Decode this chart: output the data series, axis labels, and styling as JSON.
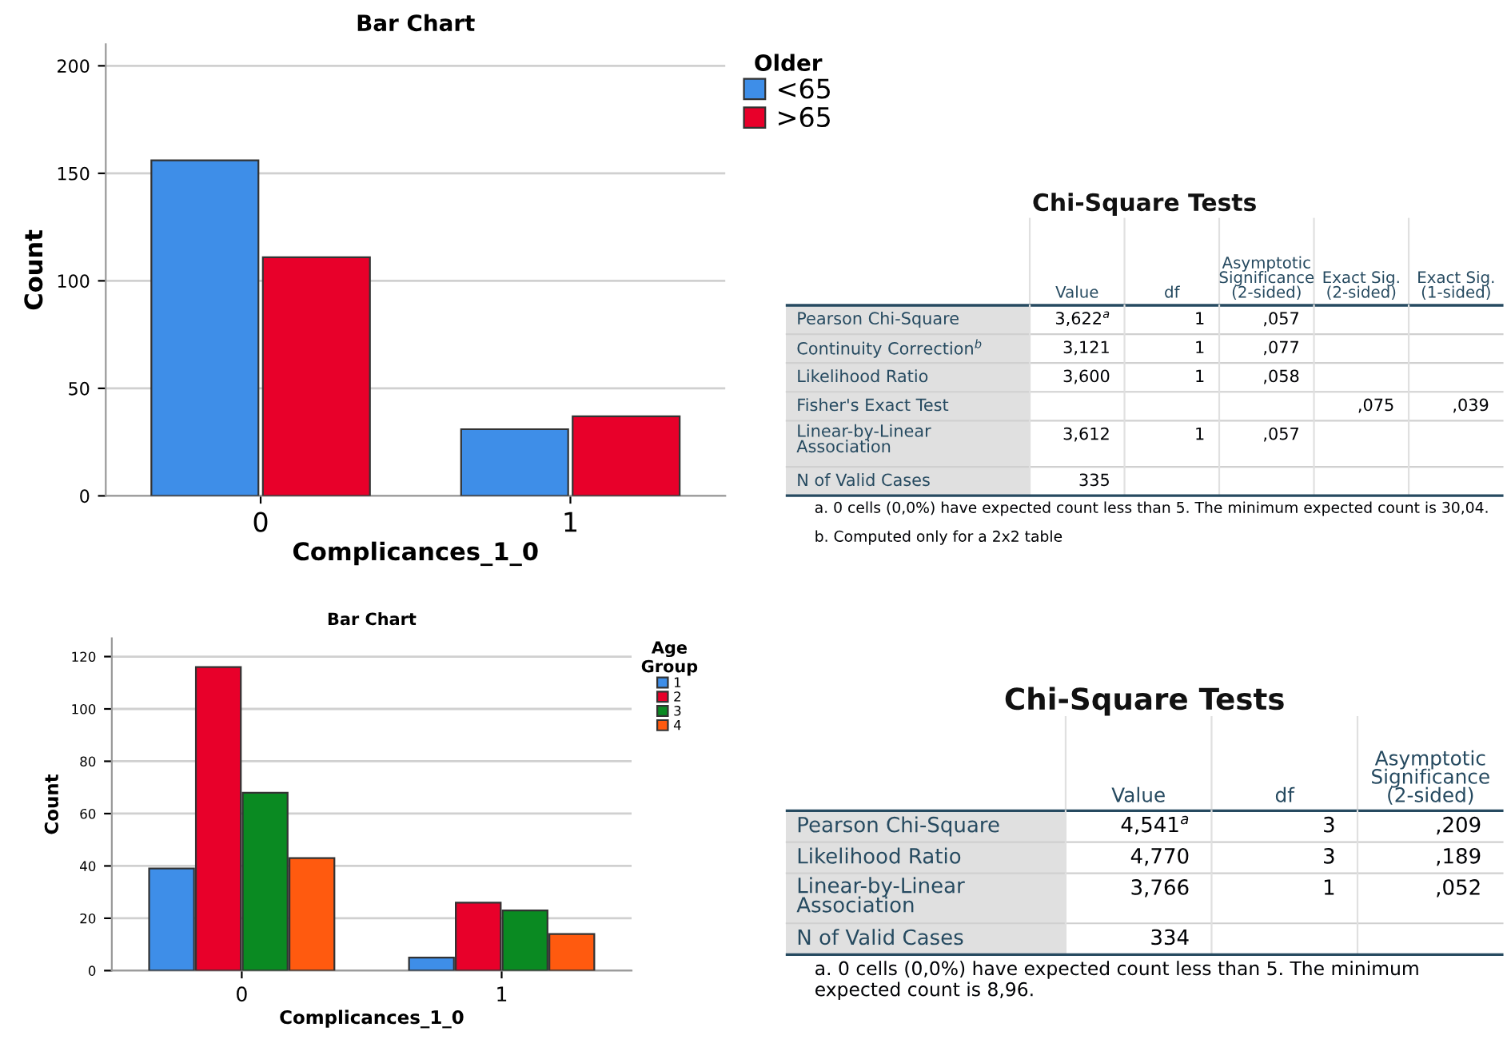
{
  "chart_data": [
    {
      "type": "bar",
      "title": "Bar Chart",
      "xlabel": "Complicances_1_0",
      "ylabel": "Count",
      "legend_title": "Older",
      "categories": [
        "0",
        "1"
      ],
      "series": [
        {
          "name": "<65",
          "color": "#3e8ee8",
          "values": [
            156,
            31
          ]
        },
        {
          "name": ">65",
          "color": "#e8002a",
          "values": [
            111,
            37
          ]
        }
      ],
      "ylim": [
        0,
        210
      ],
      "yticks": [
        0,
        50,
        100,
        150,
        200
      ],
      "grid": "y",
      "legend": "top right"
    },
    {
      "type": "other",
      "title": "Chi-Square Tests",
      "categories": [
        "Value",
        "df",
        "Asymptotic\nSignificance\n(2-sided)",
        "Exact Sig.\n(2-sided)",
        "Exact Sig.\n(1-sided)"
      ],
      "y_categories": [
        "Pearson Chi-Square",
        "Continuity Correction$^{b}$",
        "Likelihood Ratio",
        "Fisher's Exact Test",
        "Linear-by-Linear\nAssociation",
        "N of Valid Cases"
      ],
      "cell_labels": [
        [
          "3,622$^{a}$",
          "1",
          ",057",
          null,
          null
        ],
        [
          "3,121",
          "1",
          ",077",
          null,
          null
        ],
        [
          "3,600",
          "1",
          ",058",
          null,
          null
        ],
        [
          null,
          null,
          null,
          ",075",
          ",039"
        ],
        [
          "3,612",
          "1",
          ",057",
          null,
          null
        ],
        [
          "335",
          null,
          null,
          null,
          null
        ]
      ],
      "annotations": [
        "a. 0 cells (0,0%) have expected count less than 5. The minimum expected count is 30,04.",
        "b. Computed only for a 2x2 table"
      ]
    },
    {
      "type": "bar",
      "title": "Bar Chart",
      "xlabel": "Complicances_1_0",
      "ylabel": "Count",
      "legend_title": "Age\nGroup",
      "categories": [
        "0",
        "1"
      ],
      "series": [
        {
          "name": "1",
          "color": "#3e8ee8",
          "values": [
            39,
            5
          ]
        },
        {
          "name": "2",
          "color": "#e8002a",
          "values": [
            116,
            26
          ]
        },
        {
          "name": "3",
          "color": "#0a8a22",
          "values": [
            68,
            23
          ]
        },
        {
          "name": "4",
          "color": "#ff5a0f",
          "values": [
            43,
            14
          ]
        }
      ],
      "ylim": [
        0,
        127
      ],
      "yticks": [
        0,
        20,
        40,
        60,
        80,
        100,
        120
      ],
      "grid": "y",
      "legend": "top right"
    },
    {
      "type": "other",
      "title": "Chi-Square Tests",
      "categories": [
        "Value",
        "df",
        "Asymptotic\nSignificance\n(2-sided)"
      ],
      "y_categories": [
        "Pearson Chi-Square",
        "Likelihood Ratio",
        "Linear-by-Linear\nAssociation",
        "N of Valid Cases"
      ],
      "cell_labels": [
        [
          "4,541$^{a}$",
          "3",
          ",209"
        ],
        [
          "4,770",
          "3",
          ",189"
        ],
        [
          "3,766",
          "1",
          ",052"
        ],
        [
          "334",
          null,
          null
        ]
      ],
      "annotations": [
        "a. 0 cells (0,0%) have expected count less than 5. The minimum expected count is 8,96."
      ]
    }
  ]
}
